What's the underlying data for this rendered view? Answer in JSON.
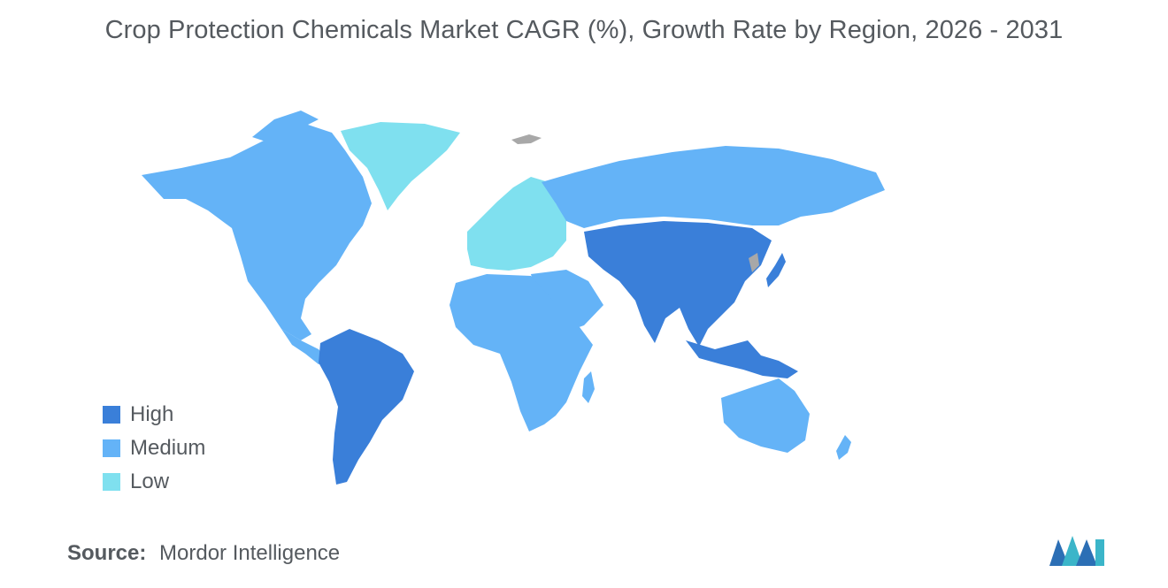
{
  "title": "Crop Protection Chemicals Market CAGR (%), Growth Rate by Region, 2026 - 2031",
  "colors": {
    "high": "#3a7fd9",
    "medium": "#64b3f7",
    "low": "#7fe0ef",
    "no_data": "#a8a8a8",
    "text": "#555a5f"
  },
  "legend": [
    {
      "label": "High",
      "color": "#3a7fd9"
    },
    {
      "label": "Medium",
      "color": "#64b3f7"
    },
    {
      "label": "Low",
      "color": "#7fe0ef"
    }
  ],
  "regions": {
    "north_america": "Medium",
    "greenland": "Low",
    "south_america": "High",
    "europe": "Low",
    "russia": "Medium",
    "africa": "Medium",
    "middle_east": "Medium",
    "asia_pacific": "High",
    "japan": "High",
    "australia": "Medium"
  },
  "source": {
    "label": "Source:",
    "value": "Mordor Intelligence"
  },
  "logo_icon": "mordor-intelligence-logo-icon"
}
